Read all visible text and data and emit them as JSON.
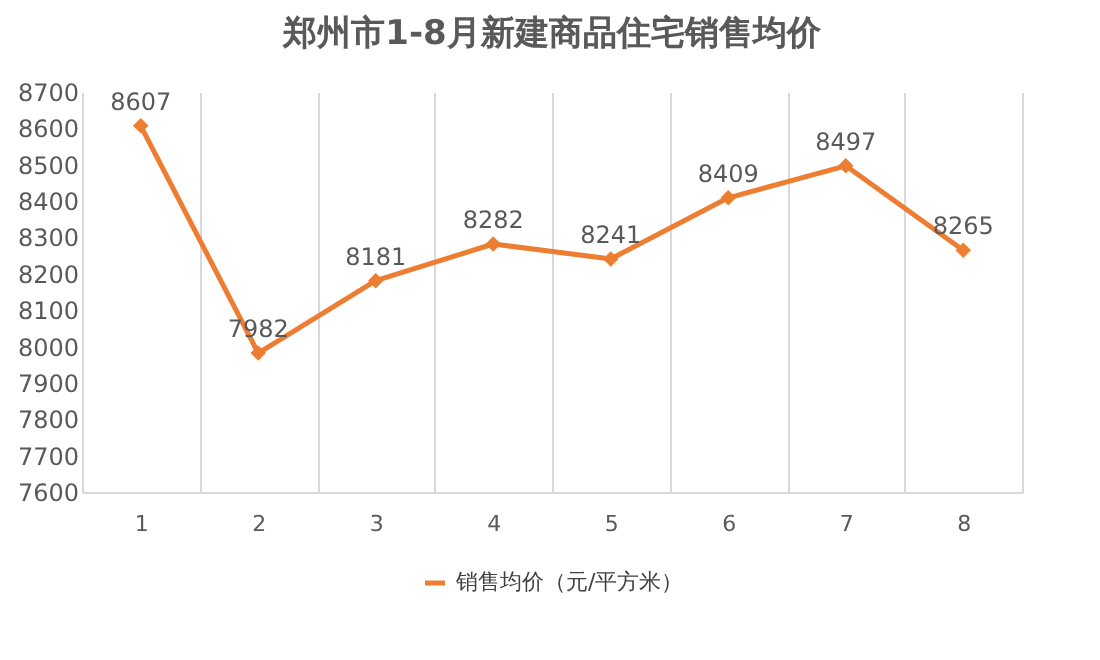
{
  "chart_data": {
    "type": "line",
    "title": "郑州市1-8月新建商品住宅销售均价",
    "categories": [
      "1",
      "2",
      "3",
      "4",
      "5",
      "6",
      "7",
      "8"
    ],
    "series": [
      {
        "name": "销售均价（元/平方米）",
        "color": "#ed7d31",
        "values": [
          8607,
          7982,
          8181,
          8282,
          8241,
          8409,
          8497,
          8265
        ]
      }
    ],
    "ylim": [
      7600,
      8700
    ],
    "yticks": [
      7600,
      7700,
      7800,
      7900,
      8000,
      8100,
      8200,
      8300,
      8400,
      8500,
      8600,
      8700
    ],
    "grid": "x",
    "legend": "bottom",
    "marker": "diamond",
    "data_labels": true
  }
}
